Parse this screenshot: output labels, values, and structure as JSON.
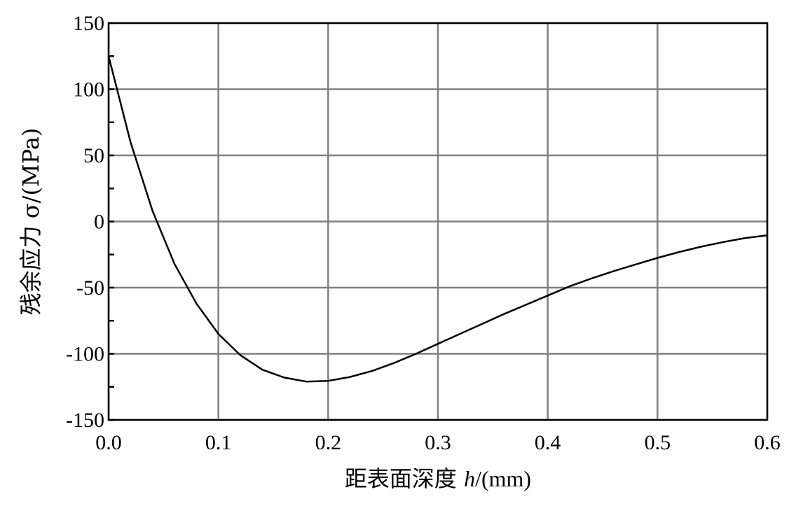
{
  "chart_data": {
    "type": "line",
    "xlabel": "距表面深度 h/(mm)",
    "xlabel_parts": {
      "prefix": "距表面深度 ",
      "var": "h",
      "suffix": "/(mm)"
    },
    "ylabel": "残余应力 σ/(MPa)",
    "xlim": [
      0,
      0.6
    ],
    "ylim": [
      -150,
      150
    ],
    "x_ticks": [
      0.0,
      0.1,
      0.2,
      0.3,
      0.4,
      0.5,
      0.6
    ],
    "x_tick_labels": [
      "0.0",
      "0.1",
      "0.2",
      "0.3",
      "0.4",
      "0.5",
      "0.6"
    ],
    "y_ticks": [
      150,
      100,
      50,
      0,
      -50,
      -100,
      -150
    ],
    "y_tick_labels": [
      "150",
      "100",
      "50",
      "0",
      "-50",
      "-100",
      "-150"
    ],
    "y_minor_step": 25,
    "grid": true,
    "colors": {
      "line": "#000000",
      "grid": "#808080",
      "frame": "#000000"
    },
    "series": [
      {
        "x": [
          0.0,
          0.02,
          0.04,
          0.06,
          0.08,
          0.1,
          0.12,
          0.14,
          0.16,
          0.18,
          0.2,
          0.22,
          0.24,
          0.26,
          0.28,
          0.3,
          0.32,
          0.34,
          0.36,
          0.38,
          0.4,
          0.42,
          0.44,
          0.46,
          0.48,
          0.5,
          0.52,
          0.54,
          0.56,
          0.58,
          0.6
        ],
        "y": [
          125,
          60,
          8,
          -32,
          -62,
          -85,
          -101,
          -112,
          -118,
          -121,
          -120.5,
          -117.5,
          -113,
          -107,
          -100,
          -92.5,
          -85,
          -77.5,
          -70,
          -63,
          -56,
          -49,
          -43,
          -37.5,
          -32.5,
          -27.5,
          -23,
          -19,
          -15.5,
          -12.5,
          -10.5
        ]
      }
    ]
  }
}
